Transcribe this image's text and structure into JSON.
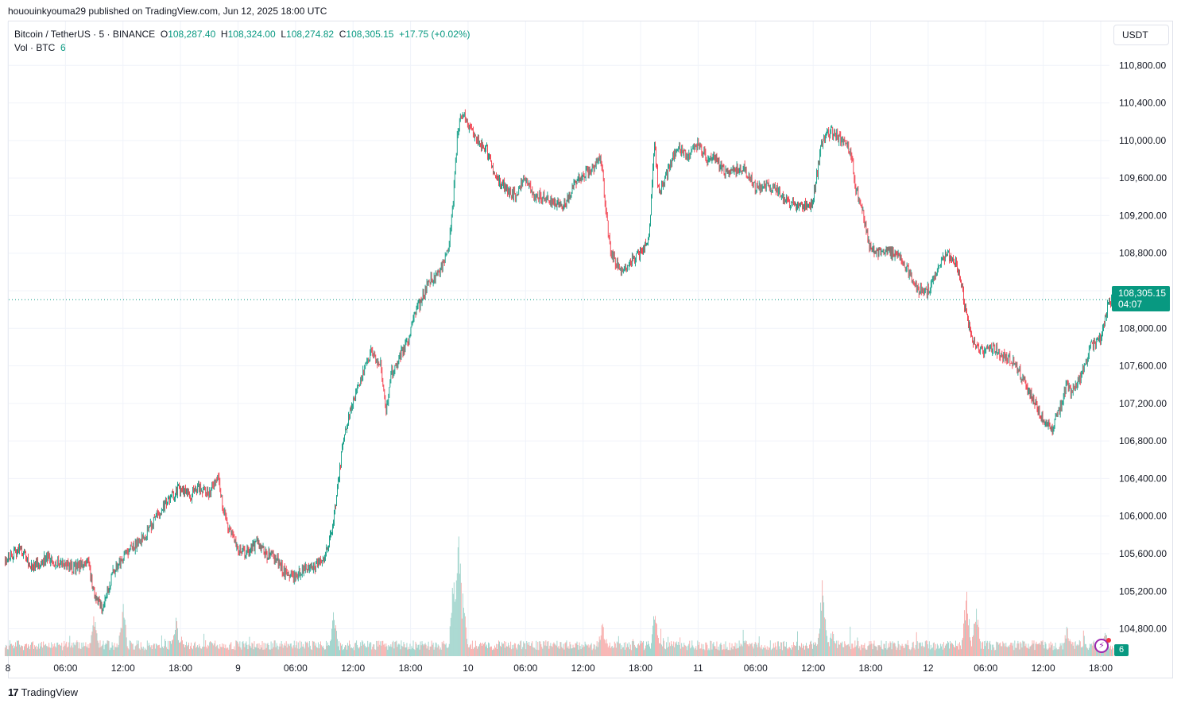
{
  "caption": "hououinkyouma29 published on TradingView.com, Jun 12, 2025 18:00 UTC",
  "legend": {
    "symbol": "Bitcoin / TetherUS · 5 · BINANCE",
    "o_key": "O",
    "o_val": "108,287.40",
    "h_key": "H",
    "h_val": "108,324.00",
    "l_key": "L",
    "l_val": "108,274.82",
    "c_key": "C",
    "c_val": "108,305.15",
    "change": "+17.75 (+0.02%)",
    "vol_key": "Vol · BTC",
    "vol_val": "6"
  },
  "currency": "USDT",
  "price_label": {
    "price": "108,305.15",
    "countdown": "04:07"
  },
  "vol_label": "6",
  "flash_icon": "lightning-icon",
  "logo": {
    "mark": "17",
    "text": "TradingView"
  },
  "colors": {
    "up": "#089981",
    "down": "#f23645",
    "grid": "#f0f3fa",
    "vol_up": "#9ad1c9",
    "vol_down": "#f7a9a7"
  },
  "chart_data": {
    "type": "candlestick",
    "title": "Bitcoin / TetherUS · 5 · BINANCE",
    "ylim": [
      104500,
      111200
    ],
    "yticks": [
      104800,
      105200,
      105600,
      106000,
      106400,
      106800,
      107200,
      107600,
      108000,
      108400,
      108800,
      109200,
      109600,
      110000,
      110400,
      110800
    ],
    "ytick_labels": [
      "104,800.00",
      "105,200.00",
      "105,600.00",
      "106,000.00",
      "106,400.00",
      "106,800.00",
      "107,200.00",
      "107,600.00",
      "108,000.00",
      "108,400.00",
      "108,800.00",
      "109,200.00",
      "109,600.00",
      "110,000.00",
      "110,400.00",
      "110,800.00"
    ],
    "xlim_hours": [
      0,
      115.5
    ],
    "xticks_hours": [
      0,
      6,
      12,
      18,
      24,
      30,
      36,
      42,
      48,
      54,
      60,
      66,
      72,
      78,
      84,
      90,
      96,
      102,
      108,
      114
    ],
    "xtick_labels": [
      "8",
      "06:00",
      "12:00",
      "18:00",
      "9",
      "06:00",
      "12:00",
      "18:00",
      "10",
      "06:00",
      "12:00",
      "18:00",
      "11",
      "06:00",
      "12:00",
      "18:00",
      "12",
      "06:00",
      "12:00",
      "18:00"
    ],
    "x_start": "2025-06-08 00:00 UTC",
    "last_price": 108305.15,
    "price_path": [
      [
        -0.3,
        105550
      ],
      [
        1.5,
        105650
      ],
      [
        2.5,
        105450
      ],
      [
        4,
        105550
      ],
      [
        5.5,
        105500
      ],
      [
        7,
        105450
      ],
      [
        8.5,
        105500
      ],
      [
        9,
        105200
      ],
      [
        10,
        105000
      ],
      [
        11,
        105400
      ],
      [
        12,
        105550
      ],
      [
        13,
        105650
      ],
      [
        14,
        105750
      ],
      [
        15,
        105900
      ],
      [
        16,
        106050
      ],
      [
        17,
        106200
      ],
      [
        18,
        106300
      ],
      [
        19,
        106200
      ],
      [
        20,
        106300
      ],
      [
        21,
        106250
      ],
      [
        22,
        106400
      ],
      [
        22.5,
        106100
      ],
      [
        23,
        105900
      ],
      [
        24,
        105650
      ],
      [
        25,
        105600
      ],
      [
        26,
        105700
      ],
      [
        27,
        105600
      ],
      [
        28,
        105550
      ],
      [
        29,
        105400
      ],
      [
        30,
        105350
      ],
      [
        31,
        105450
      ],
      [
        32,
        105450
      ],
      [
        33,
        105550
      ],
      [
        33.5,
        105700
      ],
      [
        34,
        105900
      ],
      [
        34.5,
        106300
      ],
      [
        35,
        106800
      ],
      [
        36,
        107200
      ],
      [
        37,
        107500
      ],
      [
        38,
        107750
      ],
      [
        39,
        107600
      ],
      [
        39.5,
        107100
      ],
      [
        40,
        107500
      ],
      [
        41,
        107700
      ],
      [
        42,
        107900
      ],
      [
        42.5,
        108150
      ],
      [
        43,
        108250
      ],
      [
        44,
        108500
      ],
      [
        45,
        108600
      ],
      [
        46,
        108800
      ],
      [
        46.5,
        109300
      ],
      [
        47,
        110100
      ],
      [
        47.5,
        110300
      ],
      [
        48,
        110200
      ],
      [
        49,
        110000
      ],
      [
        50,
        109900
      ],
      [
        51,
        109600
      ],
      [
        52,
        109500
      ],
      [
        53,
        109400
      ],
      [
        54,
        109600
      ],
      [
        55,
        109400
      ],
      [
        56,
        109400
      ],
      [
        57,
        109350
      ],
      [
        58,
        109300
      ],
      [
        59,
        109500
      ],
      [
        60,
        109600
      ],
      [
        61,
        109700
      ],
      [
        62,
        109800
      ],
      [
        62.5,
        109200
      ],
      [
        63,
        108800
      ],
      [
        64,
        108600
      ],
      [
        65,
        108700
      ],
      [
        66,
        108800
      ],
      [
        67,
        109000
      ],
      [
        67.5,
        110000
      ],
      [
        68,
        109400
      ],
      [
        69,
        109700
      ],
      [
        70,
        109950
      ],
      [
        71,
        109800
      ],
      [
        72,
        109950
      ],
      [
        73,
        109800
      ],
      [
        74,
        109800
      ],
      [
        75,
        109650
      ],
      [
        76,
        109700
      ],
      [
        77,
        109700
      ],
      [
        78,
        109500
      ],
      [
        79,
        109500
      ],
      [
        80,
        109500
      ],
      [
        81,
        109400
      ],
      [
        82,
        109300
      ],
      [
        83,
        109300
      ],
      [
        84,
        109300
      ],
      [
        85,
        110000
      ],
      [
        86,
        110100
      ],
      [
        87,
        110000
      ],
      [
        88,
        109900
      ],
      [
        88.5,
        109500
      ],
      [
        89,
        109350
      ],
      [
        90,
        108850
      ],
      [
        91,
        108800
      ],
      [
        92,
        108800
      ],
      [
        93,
        108800
      ],
      [
        94,
        108600
      ],
      [
        95,
        108400
      ],
      [
        96,
        108400
      ],
      [
        97,
        108600
      ],
      [
        98,
        108800
      ],
      [
        99,
        108700
      ],
      [
        99.5,
        108500
      ],
      [
        100,
        108150
      ],
      [
        101,
        107800
      ],
      [
        102,
        107750
      ],
      [
        103,
        107800
      ],
      [
        104,
        107700
      ],
      [
        105,
        107650
      ],
      [
        106,
        107450
      ],
      [
        107,
        107250
      ],
      [
        108,
        107050
      ],
      [
        109,
        106900
      ],
      [
        110,
        107200
      ],
      [
        110.5,
        107400
      ],
      [
        111,
        107300
      ],
      [
        112,
        107500
      ],
      [
        113,
        107800
      ],
      [
        114,
        107900
      ],
      [
        115,
        108300
      ],
      [
        115.3,
        108305
      ]
    ],
    "volume_spikes_hours": [
      [
        9,
        0.25
      ],
      [
        12,
        0.3
      ],
      [
        17.5,
        0.22
      ],
      [
        34,
        0.25
      ],
      [
        46.5,
        0.45
      ],
      [
        47,
        0.8
      ],
      [
        47.5,
        0.35
      ],
      [
        62,
        0.2
      ],
      [
        67.5,
        0.28
      ],
      [
        85,
        0.45
      ],
      [
        86,
        0.15
      ],
      [
        100,
        0.38
      ],
      [
        101,
        0.3
      ],
      [
        110.5,
        0.18
      ],
      [
        114.5,
        0.15
      ]
    ]
  }
}
